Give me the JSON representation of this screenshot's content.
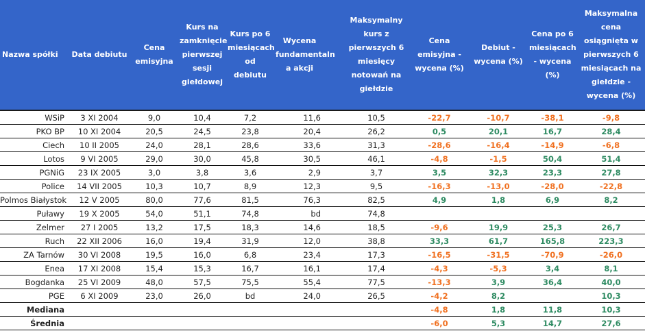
{
  "colors": {
    "header_bg": "#3465c9",
    "negative": "#f07020",
    "positive": "#2e8b62"
  },
  "headers": [
    "Nazwa spółki",
    "Data debiutu",
    "Cena emisyjna",
    "Kurs na zamknięcie pierwszej sesji giełdowej",
    "Kurs po 6 miesiącach od debiutu",
    "Wycena fundamentaln a akcji",
    "Maksymalny kurs z pierwszych 6 miesięcy notowań na giełdzie",
    "Cena emisyjna - wycena (%)",
    "Debiut - wycena (%)",
    "Cena po 6 miesiącach - wycena (%)",
    "Maksymalna cena osiągnięta w pierwszych 6 miesiącach na giełdzie - wycena (%)"
  ],
  "rows": [
    [
      "WSiP",
      "3 XI 2004",
      "9,0",
      "10,4",
      "7,2",
      "11,6",
      "10,5",
      "-22,7",
      "-10,7",
      "-38,1",
      "-9,8"
    ],
    [
      "PKO BP",
      "10 XI 2004",
      "20,5",
      "24,5",
      "23,8",
      "20,4",
      "26,2",
      "0,5",
      "20,1",
      "16,7",
      "28,4"
    ],
    [
      "Ciech",
      "10 II 2005",
      "24,0",
      "28,1",
      "28,6",
      "33,6",
      "31,3",
      "-28,6",
      "-16,4",
      "-14,9",
      "-6,8"
    ],
    [
      "Lotos",
      "9 VI 2005",
      "29,0",
      "30,0",
      "45,8",
      "30,5",
      "46,1",
      "-4,8",
      "-1,5",
      "50,4",
      "51,4"
    ],
    [
      "PGNiG",
      "23 IX 2005",
      "3,0",
      "3,8",
      "3,6",
      "2,9",
      "3,7",
      "3,5",
      "32,3",
      "23,3",
      "27,8"
    ],
    [
      "Police",
      "14 VII 2005",
      "10,3",
      "10,7",
      "8,9",
      "12,3",
      "9,5",
      "-16,3",
      "-13,0",
      "-28,0",
      "-22,8"
    ],
    [
      "Polmos Białystok",
      "12 V 2005",
      "80,0",
      "77,6",
      "81,5",
      "76,3",
      "82,5",
      "4,9",
      "1,8",
      "6,9",
      "8,2"
    ],
    [
      "Puławy",
      "19 X 2005",
      "54,0",
      "51,1",
      "74,8",
      "bd",
      "74,8",
      "",
      "",
      "",
      ""
    ],
    [
      "Zelmer",
      "27 I 2005",
      "13,2",
      "17,5",
      "18,3",
      "14,6",
      "18,5",
      "-9,6",
      "19,9",
      "25,3",
      "26,7"
    ],
    [
      "Ruch",
      "22 XII 2006",
      "16,0",
      "19,4",
      "31,9",
      "12,0",
      "38,8",
      "33,3",
      "61,7",
      "165,8",
      "223,3"
    ],
    [
      "ZA Tarnów",
      "30 VI 2008",
      "19,5",
      "16,0",
      "6,8",
      "23,4",
      "17,3",
      "-16,5",
      "-31,5",
      "-70,9",
      "-26,0"
    ],
    [
      "Enea",
      "17 XI 2008",
      "15,4",
      "15,3",
      "16,7",
      "16,1",
      "17,4",
      "-4,3",
      "-5,3",
      "3,4",
      "8,1"
    ],
    [
      "Bogdanka",
      "25 VI 2009",
      "48,0",
      "57,5",
      "75,5",
      "55,4",
      "77,5",
      "-13,3",
      "3,9",
      "36,4",
      "40,0"
    ],
    [
      "PGE",
      "6 XI 2009",
      "23,0",
      "26,0",
      "bd",
      "24,0",
      "26,5",
      "-4,2",
      "8,2",
      "",
      "10,3"
    ],
    [
      "Mediana",
      "",
      "",
      "",
      "",
      "",
      "",
      "-4,8",
      "1,8",
      "11,8",
      "10,3"
    ],
    [
      "Średnia",
      "",
      "",
      "",
      "",
      "",
      "",
      "-6,0",
      "5,3",
      "14,7",
      "27,6"
    ]
  ]
}
